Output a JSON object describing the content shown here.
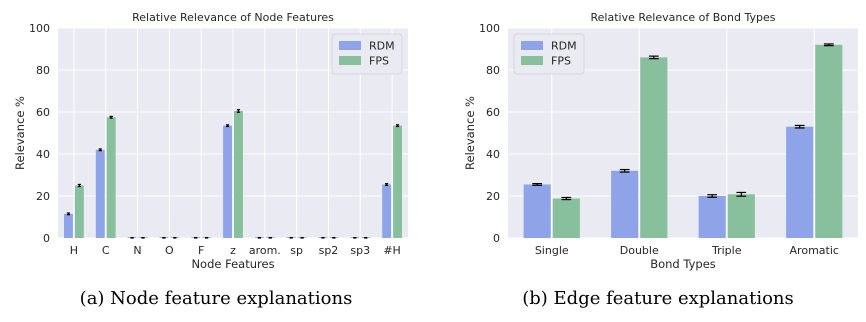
{
  "colors": {
    "background": "#eaeaf2",
    "grid": "#ffffff",
    "rdm": "#8fa4e8",
    "fps": "#88bf9c",
    "error": "#000000",
    "text": "#262626"
  },
  "chart_data": [
    {
      "type": "bar",
      "title": "Relative Relevance of Node Features",
      "xlabel": "Node Features",
      "ylabel": "Relevance %",
      "ylim": [
        0,
        100
      ],
      "yticks": [
        0,
        20,
        40,
        60,
        80,
        100
      ],
      "grid": true,
      "legend_position": "top-right",
      "categories": [
        "H",
        "C",
        "N",
        "O",
        "F",
        "z",
        "arom.",
        "sp",
        "sp2",
        "sp3",
        "#H"
      ],
      "series": [
        {
          "name": "RDM",
          "values": [
            11.5,
            42,
            0,
            0,
            0,
            53.5,
            0,
            0,
            0,
            0,
            25.5
          ],
          "errors": [
            0.4,
            0.4,
            0.2,
            0.2,
            0.2,
            0.4,
            0.2,
            0.2,
            0.2,
            0.2,
            0.4
          ]
        },
        {
          "name": "FPS",
          "values": [
            25,
            57.5,
            0,
            0,
            0,
            60.5,
            0,
            0,
            0,
            0,
            53.5
          ],
          "errors": [
            0.5,
            0.4,
            0.2,
            0.2,
            0.2,
            0.6,
            0.2,
            0.2,
            0.2,
            0.2,
            0.4
          ]
        }
      ]
    },
    {
      "type": "bar",
      "title": "Relative Relevance of Bond Types",
      "xlabel": "Bond Types",
      "ylabel": "Relevance %",
      "ylim": [
        0,
        100
      ],
      "yticks": [
        0,
        20,
        40,
        60,
        80,
        100
      ],
      "grid": true,
      "legend_position": "top-left",
      "categories": [
        "Single",
        "Double",
        "Triple",
        "Aromatic"
      ],
      "series": [
        {
          "name": "RDM",
          "values": [
            25.5,
            32,
            20,
            53
          ],
          "errors": [
            0.4,
            0.6,
            0.6,
            0.6
          ]
        },
        {
          "name": "FPS",
          "values": [
            18.8,
            86,
            20.8,
            92
          ],
          "errors": [
            0.5,
            0.6,
            0.9,
            0.4
          ]
        }
      ]
    }
  ],
  "captions": [
    "(a) Node feature explanations",
    "(b) Edge feature explanations"
  ]
}
